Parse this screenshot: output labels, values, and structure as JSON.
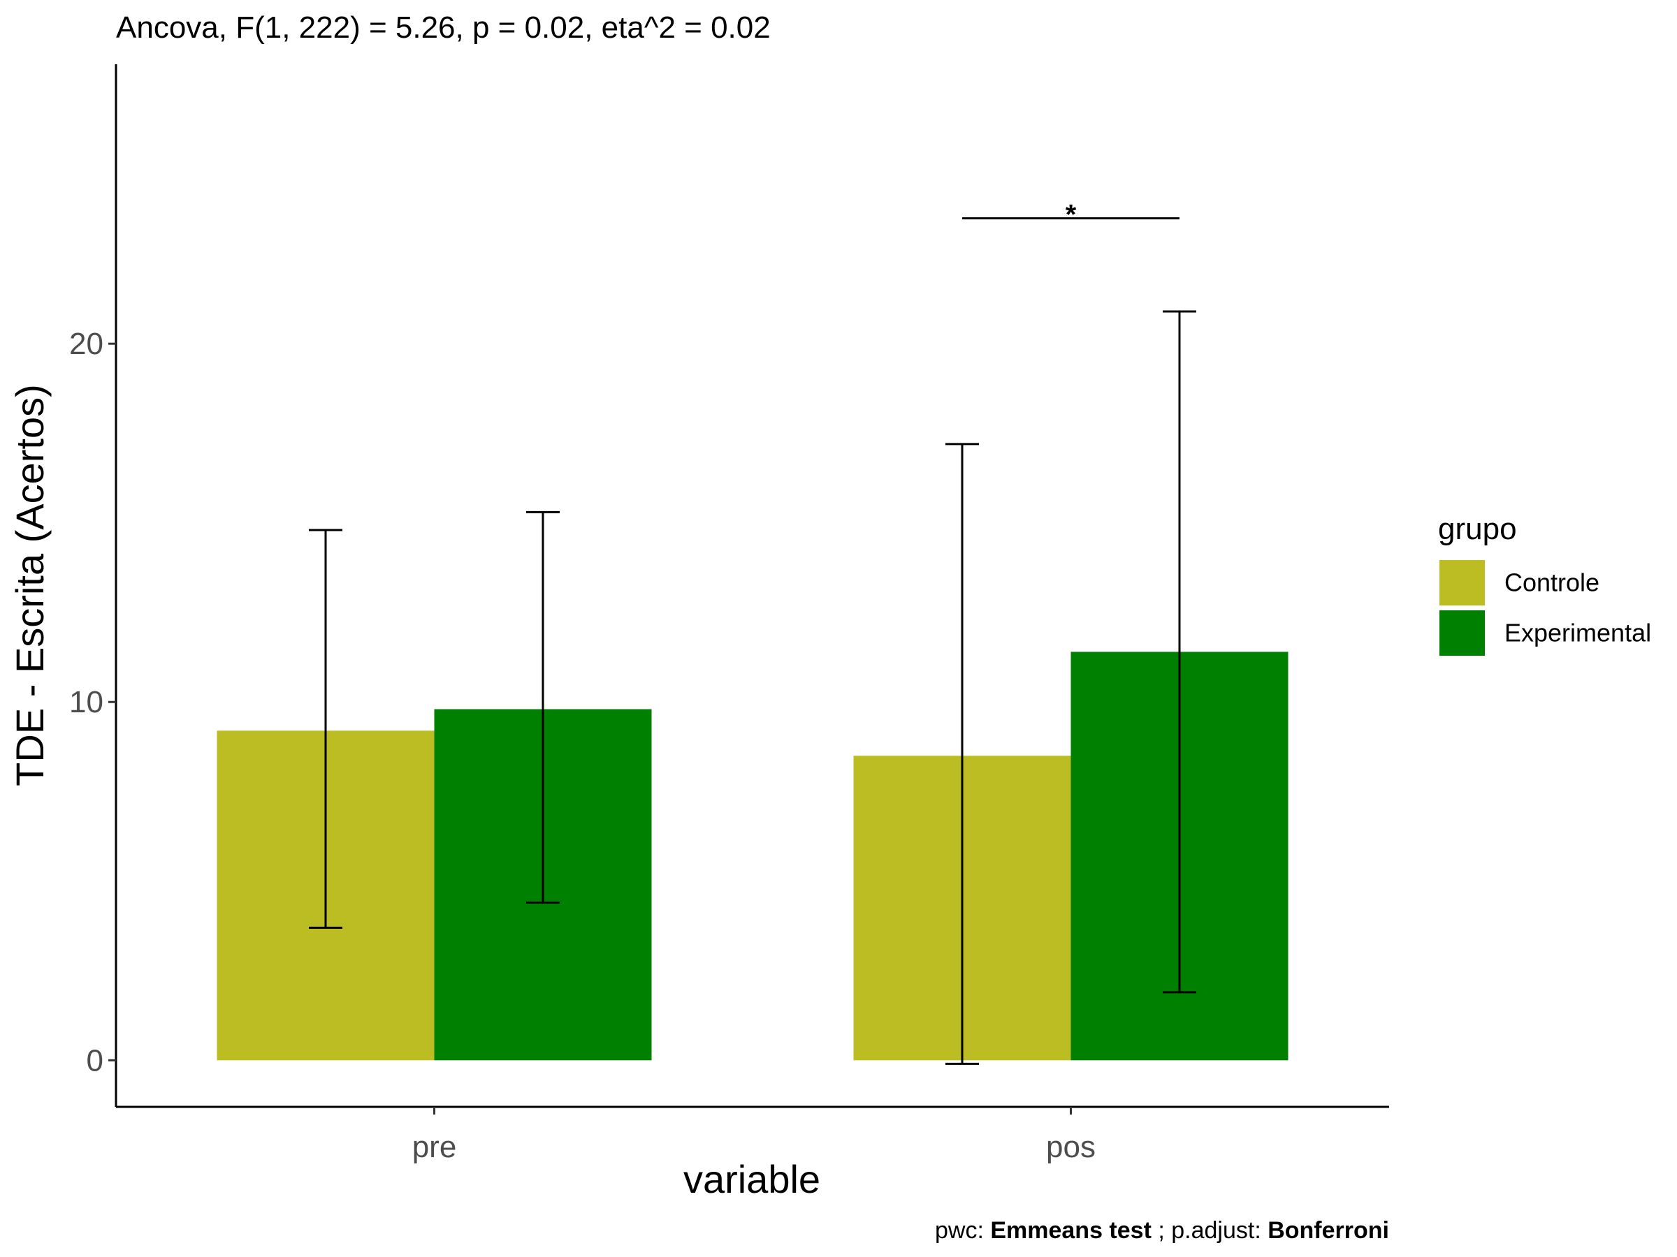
{
  "chart_data": {
    "type": "bar",
    "title": "Ancova, F(1, 222) = 5.26, p = 0.02, eta^2 = 0.02",
    "xlabel": "variable",
    "ylabel": "TDE - Escrita (Acertos)",
    "categories": [
      "pre",
      "pos"
    ],
    "series": [
      {
        "name": "Controle",
        "color": "#bcbd22",
        "values": [
          9.2,
          8.5
        ],
        "error_low": [
          3.7,
          -0.1
        ],
        "error_high": [
          14.8,
          17.2
        ]
      },
      {
        "name": "Experimental",
        "color": "#008000",
        "values": [
          9.8,
          11.4
        ],
        "error_low": [
          4.4,
          1.9
        ],
        "error_high": [
          15.3,
          20.9
        ]
      }
    ],
    "ylim": [
      -1.3,
      27.8
    ],
    "y_ticks": [
      0,
      10,
      20
    ],
    "grid": false,
    "legend": {
      "title": "grupo",
      "placement": "right"
    },
    "significance": [
      {
        "category": "pos",
        "label": "*",
        "y": 23.5
      }
    ],
    "caption": {
      "prefix": "pwc: ",
      "method": "Emmeans test",
      "middle": "; p.adjust: ",
      "adjust": "Bonferroni"
    }
  }
}
